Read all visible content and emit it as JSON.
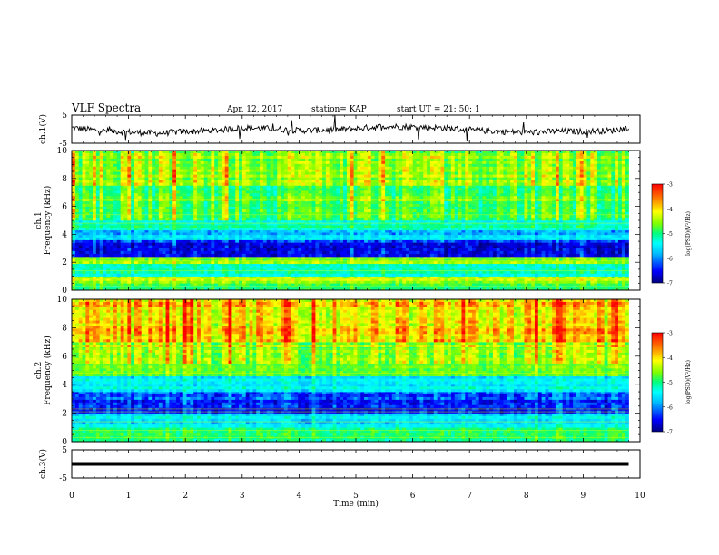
{
  "header": {
    "title": "VLF Spectra",
    "date": "Apr. 12, 2017",
    "station": "station= KAP",
    "start_ut": "start  UT =   21: 50: 1"
  },
  "colors": {
    "background": "#ffffff",
    "trace": "#000000",
    "colormap": [
      "#000080",
      "#0000ff",
      "#00c0ff",
      "#00ffff",
      "#00ff80",
      "#80ff00",
      "#ffff00",
      "#ff8000",
      "#ff0000"
    ]
  },
  "chart_data": [
    {
      "type": "line",
      "name": "ch1-voltage",
      "ylabel": "ch.1(V)",
      "ylim": [
        -5,
        5
      ],
      "yticks": [
        "5",
        "-5"
      ],
      "xlim": [
        0,
        10
      ],
      "x": [
        0.0,
        0.5,
        1.0,
        1.5,
        2.0,
        2.5,
        3.0,
        3.5,
        4.0,
        4.5,
        5.0,
        5.5,
        6.0,
        6.5,
        7.0,
        7.5,
        8.0,
        8.5,
        9.0,
        9.5,
        9.8
      ],
      "y": [
        0.5,
        -0.5,
        -1.0,
        -1.5,
        -0.8,
        -0.5,
        0.5,
        0.2,
        -0.5,
        -0.3,
        0.2,
        1.0,
        0.8,
        0.5,
        -0.3,
        -0.8,
        -1.2,
        -0.8,
        -0.8,
        -0.5,
        0.5
      ]
    },
    {
      "type": "heatmap",
      "name": "ch1-spectrogram",
      "ylabel": "ch.1\nFrequency (kHz)",
      "ylim": [
        0,
        10
      ],
      "yticks": [
        "0",
        "2",
        "4",
        "6",
        "8",
        "10"
      ],
      "xlim": [
        0,
        10
      ],
      "data_xmax": 9.8,
      "colorbar": {
        "label": "log(PSD)(V²/Hz)",
        "range": [
          -7,
          -3
        ],
        "ticks": [
          "-3",
          "-4",
          "-5",
          "-6",
          "-7"
        ]
      },
      "bands": [
        {
          "f": [
            0,
            0.5
          ],
          "level": -5.0
        },
        {
          "f": [
            0.5,
            1.0
          ],
          "level": -4.4
        },
        {
          "f": [
            1.0,
            1.9
          ],
          "level": -5.2
        },
        {
          "f": [
            1.9,
            2.4
          ],
          "level": -4.5
        },
        {
          "f": [
            2.4,
            3.6
          ],
          "level": -6.5
        },
        {
          "f": [
            3.6,
            4.3
          ],
          "level": -5.9
        },
        {
          "f": [
            4.3,
            5.0
          ],
          "level": -5.3
        },
        {
          "f": [
            5.0,
            5.6
          ],
          "level": -4.8
        },
        {
          "f": [
            5.6,
            7.5
          ],
          "level": -4.7
        },
        {
          "f": [
            7.5,
            10.0
          ],
          "level": -4.4
        }
      ]
    },
    {
      "type": "heatmap",
      "name": "ch2-spectrogram",
      "ylabel": "ch.2\nFrequency (kHz)",
      "ylim": [
        0,
        10
      ],
      "yticks": [
        "0",
        "2",
        "4",
        "6",
        "8",
        "10"
      ],
      "xlim": [
        0,
        10
      ],
      "data_xmax": 9.8,
      "colorbar": {
        "label": "log(PSD)(V²/Hz)",
        "range": [
          -7,
          -3
        ],
        "ticks": [
          "-3",
          "-4",
          "-5",
          "-6",
          "-7"
        ]
      },
      "bands": [
        {
          "f": [
            0,
            1.0
          ],
          "level": -5.0
        },
        {
          "f": [
            1.0,
            2.0
          ],
          "level": -5.7
        },
        {
          "f": [
            2.0,
            3.5
          ],
          "level": -6.5
        },
        {
          "f": [
            3.5,
            4.6
          ],
          "level": -5.6
        },
        {
          "f": [
            4.6,
            5.5
          ],
          "level": -4.7
        },
        {
          "f": [
            5.5,
            7.0
          ],
          "level": -4.4
        },
        {
          "f": [
            7.0,
            10.0
          ],
          "level": -3.9
        }
      ]
    },
    {
      "type": "line",
      "name": "ch3-voltage",
      "ylabel": "ch.3(V)",
      "ylim": [
        -5,
        5
      ],
      "yticks": [
        "5",
        "-5"
      ],
      "xlim": [
        0,
        10
      ],
      "x": [
        0,
        9.8
      ],
      "y": [
        0,
        0
      ]
    }
  ],
  "xaxis": {
    "label": "Time (min)",
    "ticks": [
      "0",
      "1",
      "2",
      "3",
      "4",
      "5",
      "6",
      "7",
      "8",
      "9",
      "10"
    ]
  }
}
